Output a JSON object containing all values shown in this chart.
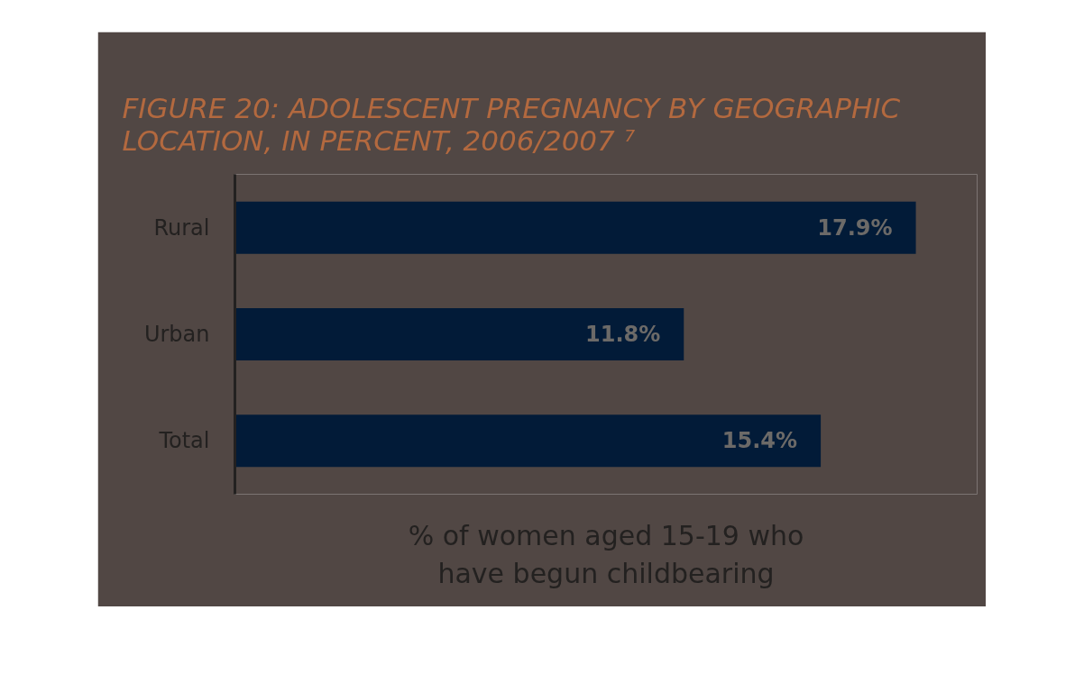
{
  "chart_data": {
    "type": "bar",
    "orientation": "horizontal",
    "title": "FIGURE 20: ADOLESCENT PREGNANCY BY GEOGRAPHIC\nLOCATION, IN PERCENT, 2006/2007 ⁷",
    "xlabel": "% of women aged 15-19 who\nhave begun childbearing",
    "categories": [
      "Rural",
      "Urban",
      "Total"
    ],
    "values": [
      17.9,
      11.8,
      15.4
    ],
    "color": "#021b38",
    "value_labels": [
      "17.9%",
      "11.8%",
      "15.4%"
    ]
  }
}
